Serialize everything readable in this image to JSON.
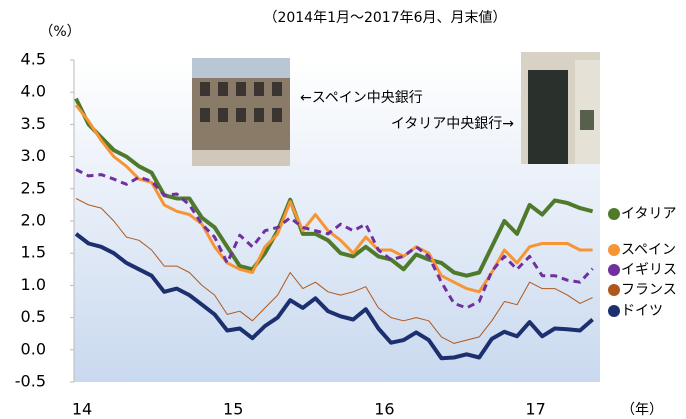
{
  "chart_data": {
    "type": "line",
    "title": "（2014年1月～2017年6月、月末値）",
    "y_unit": "（%）",
    "x_unit": "（年）",
    "annotations": [
      "←スペイン中央銀行",
      "イタリア中央銀行→"
    ],
    "categories": [
      "14",
      null,
      null,
      null,
      null,
      null,
      null,
      null,
      null,
      null,
      null,
      null,
      "15",
      null,
      null,
      null,
      null,
      null,
      null,
      null,
      null,
      null,
      null,
      null,
      "16",
      null,
      null,
      null,
      null,
      null,
      null,
      null,
      null,
      null,
      null,
      null,
      "17",
      null,
      null,
      null,
      null,
      null
    ],
    "ylim": [
      -0.5,
      4.5
    ],
    "yticks": [
      -0.5,
      {
        "value": 0,
        "label": "0.0"
      },
      0.5,
      {
        "value": 1,
        "label": "1.0"
      },
      1.5,
      {
        "value": 2,
        "label": "2.0"
      },
      2.5,
      {
        "value": 3,
        "label": "3.0"
      },
      3.5,
      {
        "value": 4,
        "label": "4.0"
      },
      4.5
    ],
    "grid": false,
    "series": [
      {
        "name": "イタリア",
        "color": "#4f7a2b",
        "values": [
          3.9,
          3.5,
          3.3,
          3.1,
          3.0,
          2.85,
          2.75,
          2.4,
          2.35,
          2.35,
          2.05,
          1.9,
          1.6,
          1.3,
          1.25,
          1.5,
          1.85,
          2.33,
          1.8,
          1.8,
          1.7,
          1.5,
          1.45,
          1.6,
          1.45,
          1.4,
          1.25,
          1.48,
          1.4,
          1.35,
          1.2,
          1.15,
          1.2,
          1.6,
          2.0,
          1.8,
          2.25,
          2.1,
          2.32,
          2.28,
          2.2,
          2.15
        ]
      },
      {
        "name": "スペイン",
        "color": "#f79434",
        "values": [
          3.8,
          3.55,
          3.25,
          3.0,
          2.85,
          2.65,
          2.6,
          2.25,
          2.15,
          2.1,
          1.95,
          1.6,
          1.35,
          1.25,
          1.2,
          1.6,
          1.8,
          2.3,
          1.85,
          2.1,
          1.85,
          1.7,
          1.5,
          1.75,
          1.55,
          1.55,
          1.45,
          1.6,
          1.5,
          1.15,
          1.05,
          0.95,
          0.9,
          1.2,
          1.55,
          1.35,
          1.6,
          1.65,
          1.65,
          1.65,
          1.55,
          1.55
        ]
      },
      {
        "name": "イギリス",
        "color": "#7030a0",
        "dashed": true,
        "values": [
          2.8,
          2.7,
          2.72,
          2.65,
          2.57,
          2.68,
          2.62,
          2.4,
          2.42,
          2.25,
          1.95,
          1.75,
          1.35,
          1.78,
          1.6,
          1.85,
          1.9,
          2.05,
          1.9,
          1.85,
          1.8,
          1.95,
          1.85,
          1.95,
          1.55,
          1.4,
          1.45,
          1.6,
          1.45,
          1.05,
          0.72,
          0.65,
          0.75,
          1.22,
          1.45,
          1.25,
          1.45,
          1.15,
          1.15,
          1.08,
          1.05,
          1.26
        ]
      },
      {
        "name": "フランス",
        "color": "#b0581c",
        "values": [
          2.35,
          2.25,
          2.2,
          2.0,
          1.75,
          1.7,
          1.55,
          1.3,
          1.3,
          1.2,
          1.0,
          0.85,
          0.55,
          0.6,
          0.45,
          0.65,
          0.85,
          1.2,
          0.95,
          1.05,
          0.9,
          0.85,
          0.9,
          0.98,
          0.65,
          0.5,
          0.45,
          0.5,
          0.45,
          0.2,
          0.1,
          0.15,
          0.2,
          0.45,
          0.75,
          0.7,
          1.05,
          0.95,
          0.95,
          0.85,
          0.72,
          0.81
        ]
      },
      {
        "name": "ドイツ",
        "color": "#1c2f6e",
        "values": [
          1.8,
          1.65,
          1.6,
          1.5,
          1.35,
          1.25,
          1.15,
          0.9,
          0.95,
          0.85,
          0.7,
          0.55,
          0.3,
          0.33,
          0.18,
          0.37,
          0.5,
          0.77,
          0.65,
          0.8,
          0.6,
          0.52,
          0.47,
          0.63,
          0.33,
          0.11,
          0.15,
          0.27,
          0.15,
          -0.13,
          -0.12,
          -0.07,
          -0.12,
          0.17,
          0.28,
          0.21,
          0.43,
          0.21,
          0.33,
          0.32,
          0.3,
          0.47
        ]
      }
    ]
  }
}
